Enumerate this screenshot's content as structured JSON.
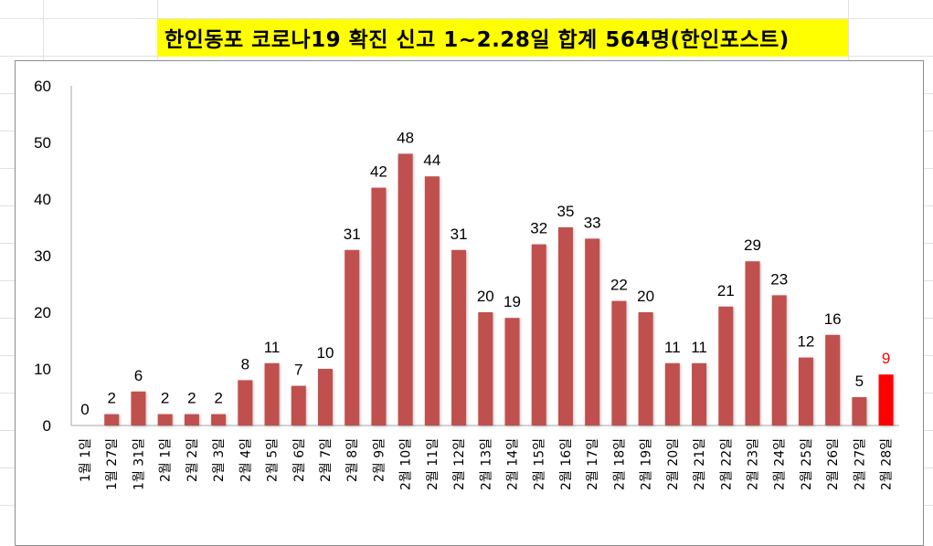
{
  "chart_data": {
    "type": "bar",
    "title": "한인동포 코로나19 확진 신고 1~2.28일 합계 564명(한인포스트)",
    "xlabel": "",
    "ylabel": "",
    "ylim": [
      0,
      60
    ],
    "yticks": [
      0,
      10,
      20,
      30,
      40,
      50,
      60
    ],
    "grid": false,
    "categories": [
      "1월 1일",
      "1월 27일",
      "1월 31일",
      "2월 1일",
      "2월 2일",
      "2월 3일",
      "2월 4일",
      "2월 5일",
      "2월 6일",
      "2월 7일",
      "2월 8일",
      "2월 9일",
      "2월 10일",
      "2월 11일",
      "2월 12일",
      "2월 13일",
      "2월 14일",
      "2월 15일",
      "2월 16일",
      "2월 17일",
      "2월 18일",
      "2월 19일",
      "2월 20일",
      "2월 21일",
      "2월 22일",
      "2월 23일",
      "2월 24일",
      "2월 25일",
      "2월 26일",
      "2월 27일",
      "2월 28일"
    ],
    "values": [
      0,
      2,
      6,
      2,
      2,
      2,
      8,
      11,
      7,
      10,
      31,
      42,
      48,
      44,
      31,
      20,
      19,
      32,
      35,
      33,
      22,
      20,
      11,
      11,
      21,
      29,
      23,
      12,
      16,
      5,
      9
    ],
    "highlight_index": 30
  },
  "colors": {
    "bar": "#c0504d",
    "highlight": "#ff0000",
    "title_bg": "#ffff00"
  }
}
